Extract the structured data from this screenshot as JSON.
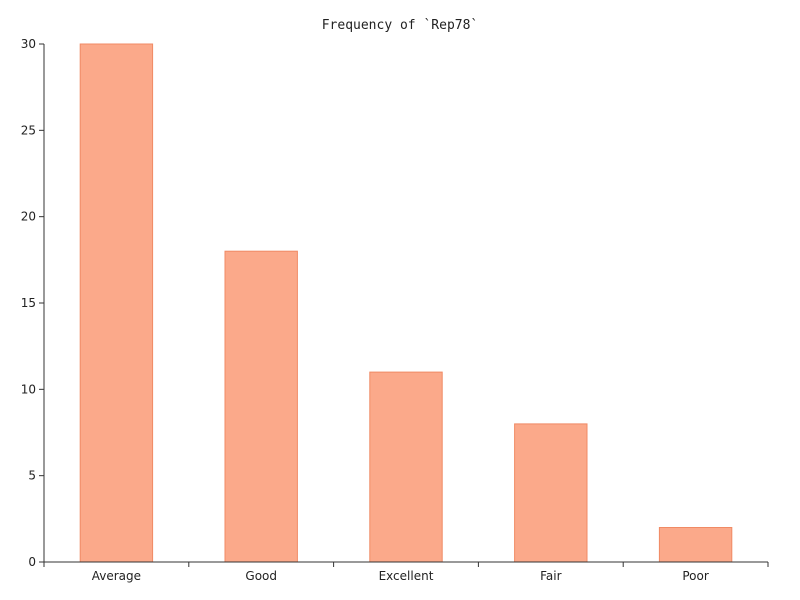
{
  "chart_data": {
    "type": "bar",
    "title": "Frequency of `Rep78`",
    "xlabel": "",
    "ylabel": "",
    "categories": [
      "Average",
      "Good",
      "Excellent",
      "Fair",
      "Poor"
    ],
    "values": [
      30,
      18,
      11,
      8,
      2
    ],
    "ylim": [
      0,
      30
    ],
    "yticks": [
      0,
      5,
      10,
      15,
      20,
      25,
      30
    ],
    "grid": false,
    "bar_fill": "#fba98a",
    "bar_stroke": "#f08a64",
    "axis_color": "#333333"
  }
}
